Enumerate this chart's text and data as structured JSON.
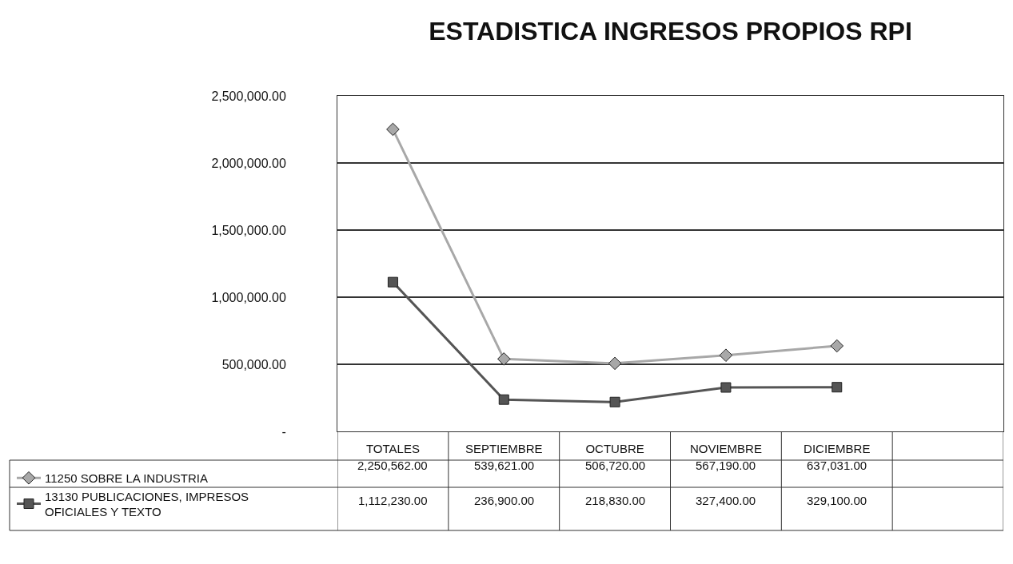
{
  "chart_data": {
    "type": "line",
    "title": "ESTADISTICA INGRESOS PROPIOS RPI",
    "categories": [
      "TOTALES",
      "SEPTIEMBRE",
      "OCTUBRE",
      "NOVIEMBRE",
      "DICIEMBRE",
      null
    ],
    "series": [
      {
        "name": "11250 SOBRE LA INDUSTRIA",
        "color": "#a8a8a8",
        "marker": "diamond",
        "values": [
          2250562,
          539621,
          506720,
          567190,
          637031,
          null
        ],
        "value_labels": [
          "2,250,562.00",
          "539,621.00",
          "506,720.00",
          "567,190.00",
          "637,031.00",
          null
        ]
      },
      {
        "name": "13130 PUBLICACIONES, IMPRESOS OFICIALES Y TEXTO",
        "color": "#555555",
        "marker": "square",
        "values": [
          1112230,
          236900,
          218830,
          327400,
          329100,
          null
        ],
        "value_labels": [
          "1,112,230.00",
          "236,900.00",
          "218,830.00",
          "327,400.00",
          "329,100.00",
          null
        ]
      }
    ],
    "ylim": [
      0,
      2500000
    ],
    "yticks": [
      {
        "value": 0,
        "label": "-"
      },
      {
        "value": 500000,
        "label": "500,000.00"
      },
      {
        "value": 1000000,
        "label": "1,000,000.00"
      },
      {
        "value": 1500000,
        "label": "1,500,000.00"
      },
      {
        "value": 2000000,
        "label": "2,000,000.00"
      },
      {
        "value": 2500000,
        "label": "2,500,000.00"
      }
    ],
    "grid": "y",
    "legend": "bottom left",
    "line_style": "solid"
  }
}
